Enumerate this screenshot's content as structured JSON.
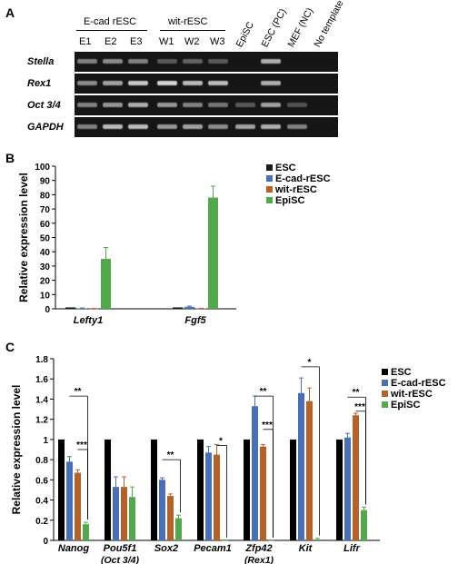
{
  "panelA": {
    "letter": "A",
    "group1": "E-cad rESC",
    "group2": "wit-rESC",
    "lanes": [
      "E1",
      "E2",
      "E3",
      "W1",
      "W2",
      "W3"
    ],
    "rotated": [
      "EpiSC",
      "ESC (PC)",
      "MEF (NC)",
      "No template"
    ],
    "genes": [
      "Stella",
      "Rex1",
      "Oct 3/4",
      "GAPDH"
    ],
    "band_intensity": [
      [
        0.55,
        0.6,
        0.55,
        0.35,
        0.4,
        0.35,
        0,
        0.75,
        0,
        0
      ],
      [
        0.6,
        0.7,
        0.85,
        0.9,
        0.8,
        0.8,
        0,
        0.75,
        0,
        0
      ],
      [
        0.55,
        0.65,
        0.75,
        0.65,
        0.55,
        0.5,
        0.35,
        0.7,
        0.3,
        0
      ],
      [
        0.55,
        0.8,
        0.8,
        0.65,
        0.7,
        0.6,
        0.7,
        0.75,
        0.55,
        0
      ]
    ]
  },
  "panelB": {
    "letter": "B",
    "chart_data": {
      "type": "bar",
      "ylabel": "Relative expression level",
      "ylim": [
        0,
        100
      ],
      "yticks": [
        "0",
        "10",
        "20",
        "30",
        "40",
        "50",
        "60",
        "70",
        "80",
        "90",
        "100"
      ],
      "categories": [
        "Lefty1",
        "Fgf5"
      ],
      "legend_position": "top-right",
      "series": [
        {
          "name": "ESC",
          "color": "#1a1a1a",
          "values": [
            1,
            1
          ],
          "err": [
            0,
            0
          ]
        },
        {
          "name": "E-cad-rESC",
          "color": "#4a6fb5",
          "values": [
            0.3,
            1.4
          ],
          "err": [
            0.3,
            0.5
          ]
        },
        {
          "name": "wit-rESC",
          "color": "#b5622a",
          "values": [
            0.2,
            0.3
          ],
          "err": [
            0.1,
            0.1
          ]
        },
        {
          "name": "EpiSC",
          "color": "#52a84a",
          "values": [
            35,
            78
          ],
          "err": [
            8,
            8
          ]
        }
      ]
    }
  },
  "panelC": {
    "letter": "C",
    "chart_data": {
      "type": "bar",
      "ylabel": "Relative expression level",
      "ylim": [
        0,
        1.8
      ],
      "yticks": [
        "0",
        "0.2",
        "0.4",
        "0.6",
        "0.8",
        "1",
        "1.2",
        "1.4",
        "1.6",
        "1.8"
      ],
      "categories": [
        "Nanog",
        "Pou5f1",
        "Sox2",
        "Pecam1",
        "Zfp42",
        "Kit",
        "Lifr"
      ],
      "sublabels": [
        "",
        "(Oct 3/4)",
        "",
        "",
        "(Rex1)",
        "",
        ""
      ],
      "legend_position": "top-right",
      "series": [
        {
          "name": "ESC",
          "color": "#000000",
          "values": [
            1,
            1,
            1,
            1,
            1,
            1,
            1
          ],
          "err": [
            0,
            0,
            0,
            0,
            0,
            0,
            0
          ]
        },
        {
          "name": "E-cad-rESC",
          "color": "#4a6fb5",
          "values": [
            0.78,
            0.53,
            0.6,
            0.87,
            1.33,
            1.46,
            1.02
          ],
          "err": [
            0.05,
            0.1,
            0.02,
            0.06,
            0.1,
            0.15,
            0.04
          ]
        },
        {
          "name": "wit-rESC",
          "color": "#b5622a",
          "values": [
            0.67,
            0.53,
            0.44,
            0.85,
            0.93,
            1.38,
            1.24
          ],
          "err": [
            0.03,
            0.1,
            0.02,
            0.1,
            0.02,
            0.13,
            0.02
          ]
        },
        {
          "name": "EpiSC",
          "color": "#52a84a",
          "values": [
            0.16,
            0.43,
            0.22,
            0,
            0,
            0.01,
            0.3
          ],
          "err": [
            0.02,
            0.1,
            0.03,
            0,
            0,
            0.01,
            0.03
          ]
        }
      ],
      "significance": [
        "**",
        "***",
        "**",
        "*",
        "**",
        "***",
        "*",
        "**",
        "***"
      ]
    }
  }
}
